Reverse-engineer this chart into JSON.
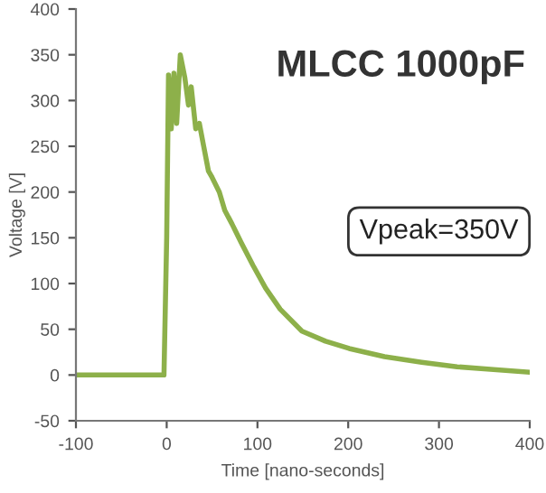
{
  "chart_data": {
    "type": "line",
    "title": "MLCC 1000pF",
    "xlabel": "Time [nano-seconds]",
    "ylabel": "Voltage [V]",
    "annotations": [
      "Vpeak=350V"
    ],
    "series": [
      {
        "color": "#8db04a",
        "x": [
          -100,
          -60,
          -30,
          -3,
          0,
          2,
          5,
          8,
          11,
          15,
          20,
          24,
          27,
          32,
          36,
          40,
          46,
          50,
          58,
          64,
          72,
          82,
          95,
          109,
          125,
          149,
          175,
          201,
          240,
          281,
          320,
          360,
          400
        ],
        "values": [
          0,
          0,
          0,
          0,
          150,
          328,
          269,
          330,
          275,
          350,
          325,
          295,
          315,
          269,
          275,
          254,
          223,
          216,
          200,
          180,
          165,
          145,
          120,
          95,
          72,
          48,
          37,
          29,
          20,
          14,
          9,
          6,
          3
        ]
      }
    ],
    "xlim": [
      -100,
      400
    ],
    "ylim": [
      -50,
      400
    ],
    "xticks": [
      -100,
      0,
      100,
      200,
      300,
      400
    ],
    "yticks": [
      -50,
      0,
      50,
      100,
      150,
      200,
      250,
      300,
      350,
      400
    ],
    "grid": false,
    "legend": false,
    "marker": "none",
    "line_style": "solid"
  }
}
